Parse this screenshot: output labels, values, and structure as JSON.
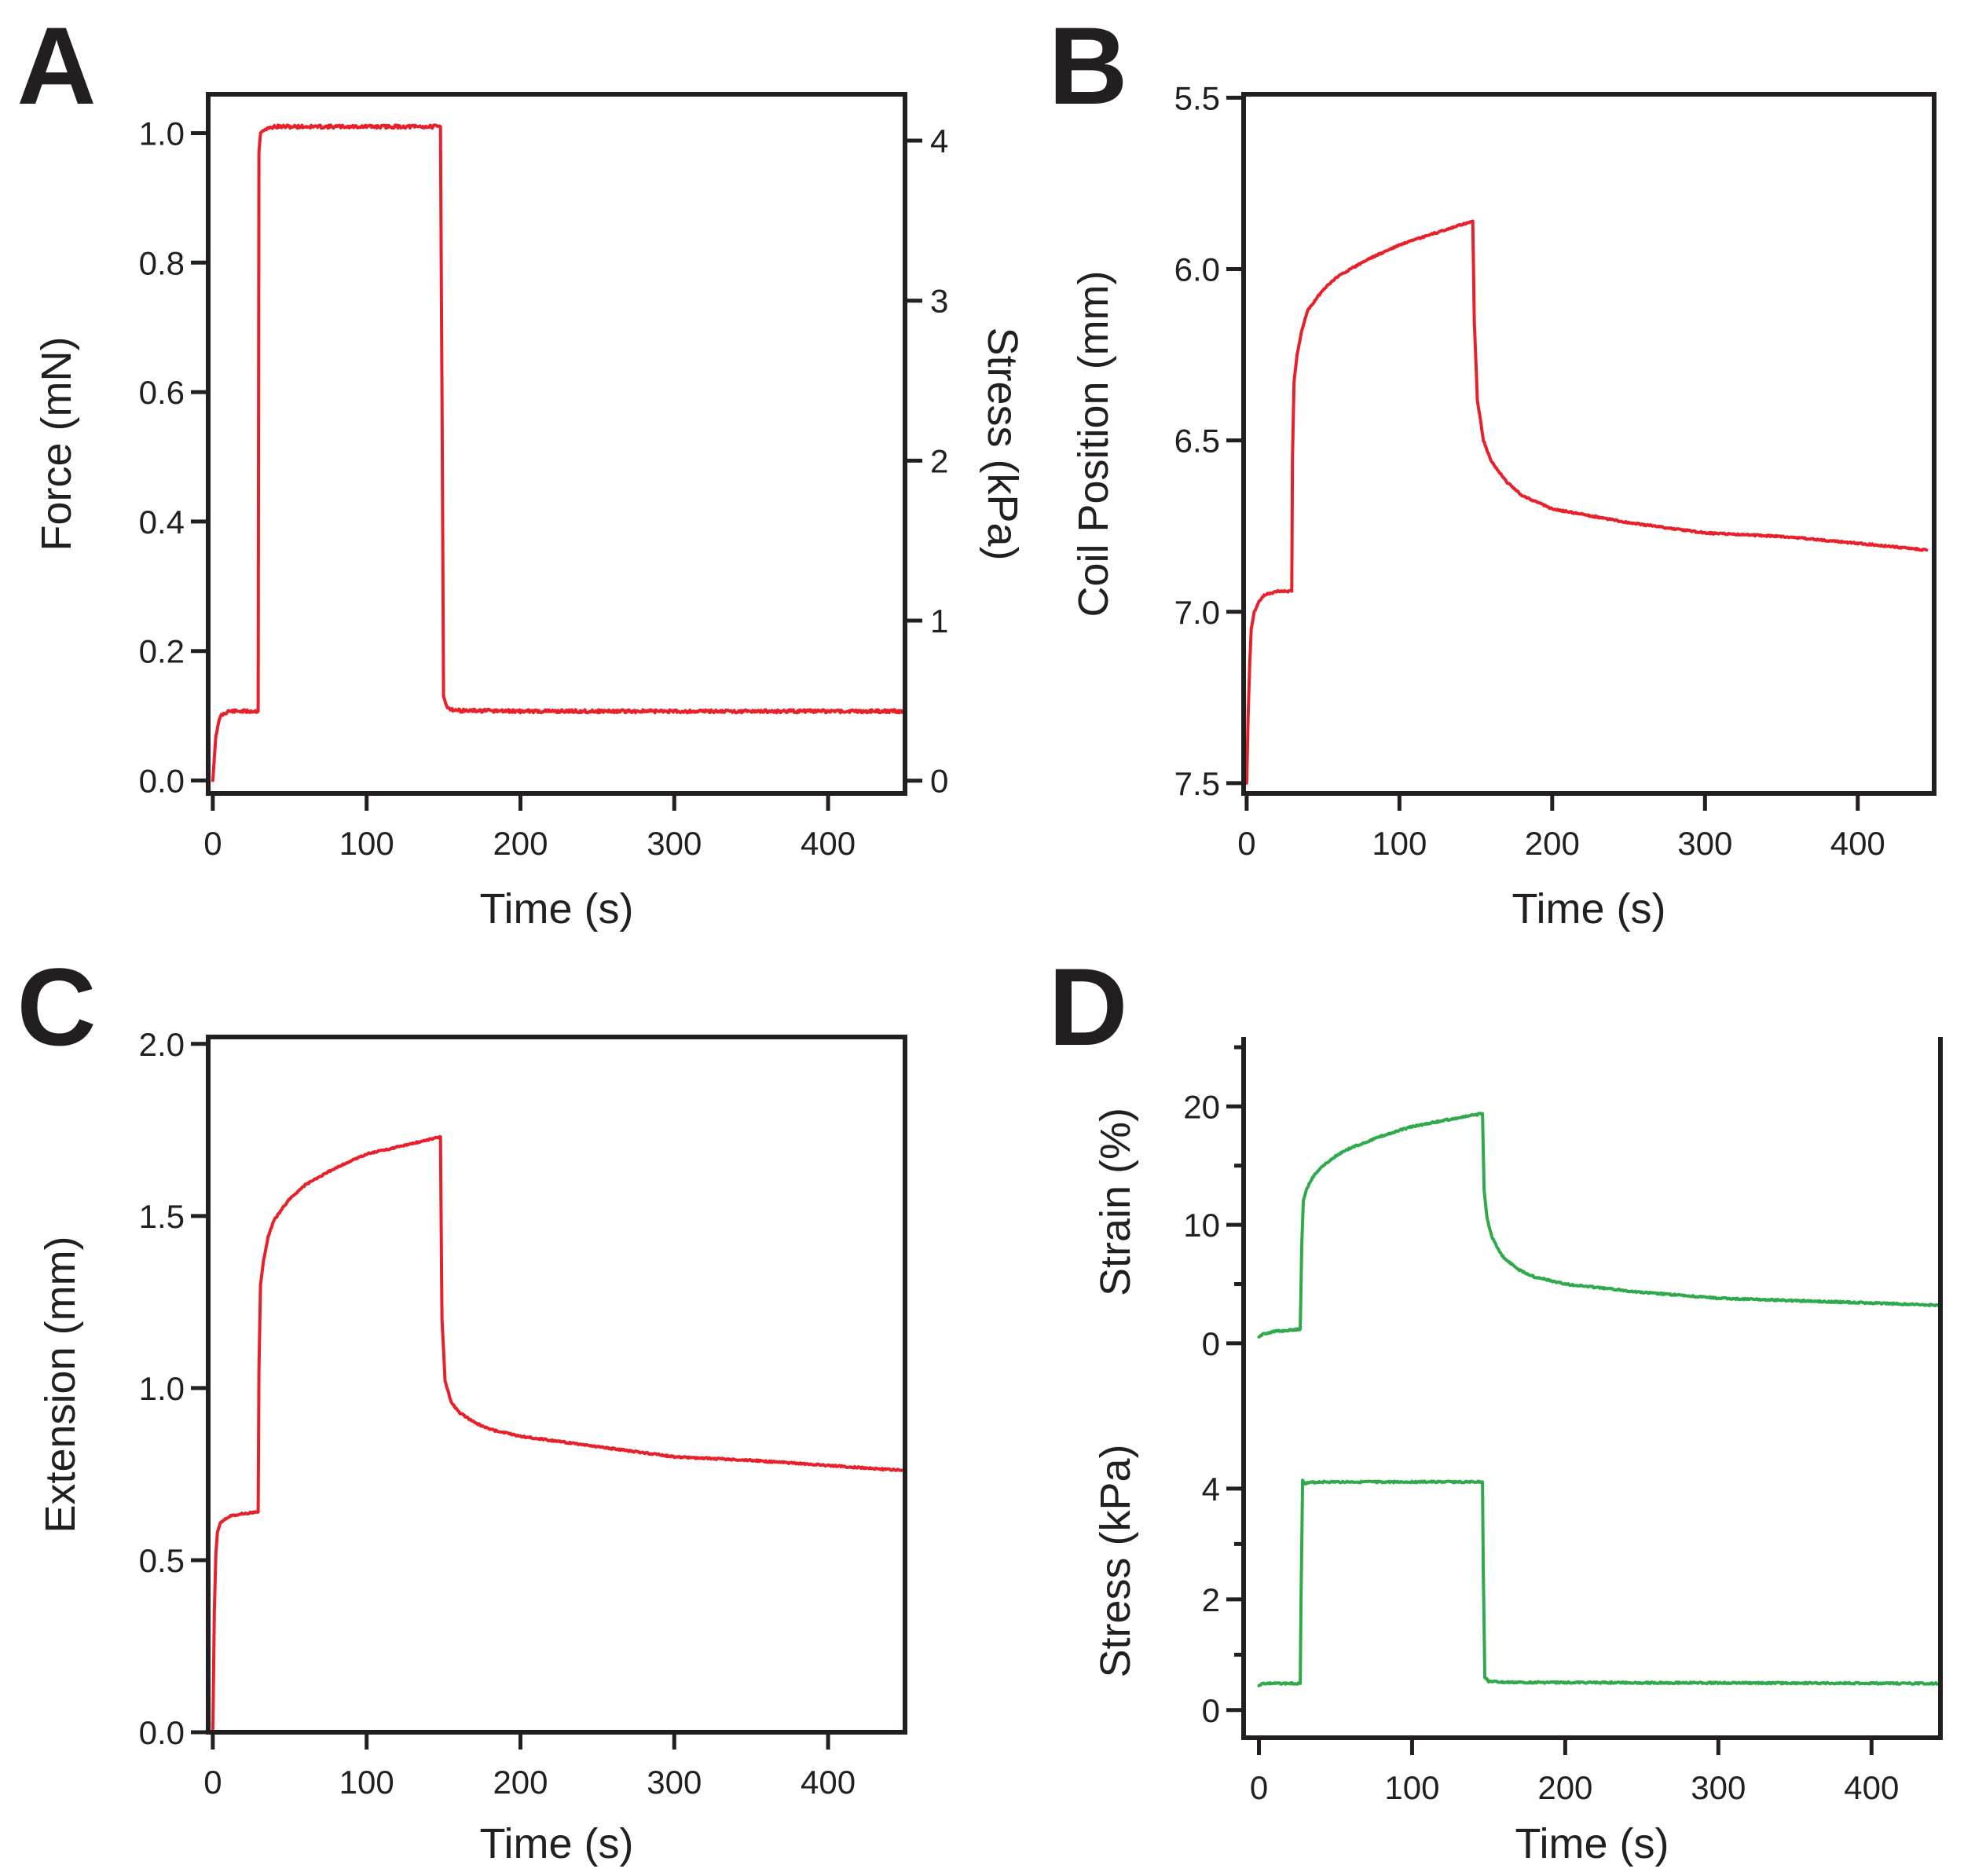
{
  "colors": {
    "red": "#e8202a",
    "green": "#2faa4a",
    "ink": "#231f20"
  },
  "chart_data": [
    {
      "id": "A",
      "panel_label": "A",
      "type": "line",
      "xlabel": "Time (s)",
      "ylabel": "Force (mN)",
      "y2label": "Stress (kPa)",
      "xlim": [
        -3,
        450
      ],
      "ylim": [
        -0.02,
        1.06
      ],
      "y2lim": [
        -0.08,
        4.29
      ],
      "xticks": [
        0,
        100,
        200,
        300,
        400
      ],
      "xtick_labels": [
        "0",
        "100",
        "200",
        "300",
        "400"
      ],
      "yticks": [
        0,
        0.2,
        0.4,
        0.6,
        0.8,
        1.0
      ],
      "ytick_labels": [
        "0.0",
        "0.2",
        "0.4",
        "0.6",
        "0.8",
        "1.0"
      ],
      "y2ticks": [
        0,
        1,
        2,
        3,
        4
      ],
      "y2tick_labels": [
        "0",
        "1",
        "2",
        "3",
        "4"
      ],
      "series": [
        {
          "name": "Force",
          "color": "#e8202a",
          "x": [
            0,
            2,
            5,
            10,
            29.5,
            30,
            31,
            33,
            40,
            148,
            149,
            150,
            152,
            155,
            160,
            200,
            300,
            450
          ],
          "y": [
            0,
            0.07,
            0.1,
            0.107,
            0.107,
            0.97,
            1.0,
            1.005,
            1.01,
            1.01,
            0.6,
            0.13,
            0.115,
            0.11,
            0.108,
            0.107,
            0.107,
            0.107
          ]
        }
      ]
    },
    {
      "id": "B",
      "panel_label": "B",
      "type": "line",
      "xlabel": "Time (s)",
      "ylabel": "Coil Position (mm)",
      "xlim": [
        -2,
        450
      ],
      "ylim": [
        7.53,
        5.49
      ],
      "y_inverted": true,
      "xticks": [
        0,
        100,
        200,
        300,
        400
      ],
      "xtick_labels": [
        "0",
        "100",
        "200",
        "300",
        "400"
      ],
      "yticks": [
        5.5,
        6.0,
        6.5,
        7.0,
        7.5
      ],
      "ytick_labels": [
        "5.5",
        "6.0",
        "6.5",
        "7.0",
        "7.5"
      ],
      "series": [
        {
          "name": "Coil Position",
          "color": "#e8202a",
          "x": [
            0,
            1,
            2,
            3,
            5,
            8,
            12,
            20,
            29.5,
            30,
            31,
            33,
            36,
            40,
            50,
            60,
            80,
            100,
            120,
            148,
            149,
            151,
            155,
            160,
            170,
            180,
            200,
            250,
            300,
            350,
            400,
            445
          ],
          "y": [
            7.5,
            7.3,
            7.15,
            7.05,
            7.0,
            6.97,
            6.95,
            6.94,
            6.94,
            6.55,
            6.33,
            6.25,
            6.18,
            6.12,
            6.06,
            6.02,
            5.97,
            5.93,
            5.9,
            5.86,
            6.15,
            6.38,
            6.5,
            6.56,
            6.62,
            6.66,
            6.7,
            6.74,
            6.77,
            6.78,
            6.8,
            6.82
          ]
        }
      ]
    },
    {
      "id": "C",
      "panel_label": "C",
      "type": "line",
      "xlabel": "Time (s)",
      "ylabel": "Extension (mm)",
      "xlim": [
        -3,
        450
      ],
      "ylim": [
        0,
        2.02
      ],
      "xticks": [
        0,
        100,
        200,
        300,
        400
      ],
      "xtick_labels": [
        "0",
        "100",
        "200",
        "300",
        "400"
      ],
      "yticks": [
        0,
        0.5,
        1.0,
        1.5,
        2.0
      ],
      "ytick_labels": [
        "0.0",
        "0.5",
        "1.0",
        "1.5",
        "2.0"
      ],
      "series": [
        {
          "name": "Extension",
          "color": "#e8202a",
          "x": [
            0,
            1,
            2,
            3,
            5,
            8,
            12,
            20,
            29.5,
            30,
            31,
            33,
            36,
            40,
            50,
            60,
            80,
            100,
            120,
            148,
            149,
            151,
            155,
            160,
            170,
            180,
            200,
            250,
            300,
            350,
            400,
            450
          ],
          "y": [
            0,
            0.35,
            0.52,
            0.58,
            0.61,
            0.62,
            0.63,
            0.635,
            0.64,
            1.05,
            1.3,
            1.37,
            1.44,
            1.49,
            1.55,
            1.59,
            1.64,
            1.68,
            1.7,
            1.73,
            1.2,
            1.02,
            0.96,
            0.93,
            0.9,
            0.88,
            0.86,
            0.83,
            0.8,
            0.79,
            0.775,
            0.76
          ]
        }
      ]
    },
    {
      "id": "D_strain",
      "panel_label": "D",
      "type": "line",
      "ylabel": "Strain (%)",
      "xlim": [
        -10,
        445
      ],
      "ylim": [
        -2,
        26
      ],
      "yticks": [
        0,
        10,
        20
      ],
      "ytick_labels": [
        "0",
        "10",
        "20"
      ],
      "yminor": [
        5,
        15,
        25
      ],
      "series": [
        {
          "name": "Strain",
          "color": "#2faa4a",
          "x": [
            0,
            3,
            10,
            20,
            27,
            28,
            29,
            31,
            35,
            40,
            50,
            60,
            80,
            100,
            120,
            146,
            147,
            149,
            152,
            156,
            160,
            170,
            180,
            200,
            250,
            300,
            350,
            400,
            445
          ],
          "y": [
            0.5,
            0.8,
            1.0,
            1.1,
            1.2,
            8.5,
            12.0,
            13.0,
            14.0,
            14.8,
            15.8,
            16.5,
            17.5,
            18.3,
            18.8,
            19.4,
            13.0,
            10.5,
            9.0,
            8.0,
            7.2,
            6.2,
            5.6,
            5.0,
            4.3,
            3.8,
            3.6,
            3.4,
            3.2
          ]
        }
      ]
    },
    {
      "id": "D_stress",
      "panel_label": "",
      "type": "line",
      "xlabel": "Time (s)",
      "ylabel": "Stress (kPa)",
      "xlim": [
        -10,
        445
      ],
      "ylim": [
        -0.5,
        4.85
      ],
      "xticks": [
        0,
        100,
        200,
        300,
        400
      ],
      "xtick_labels": [
        "0",
        "100",
        "200",
        "300",
        "400"
      ],
      "yticks": [
        0,
        2,
        4
      ],
      "ytick_labels": [
        "0",
        "2",
        "4"
      ],
      "yminor": [
        1,
        3
      ],
      "series": [
        {
          "name": "Stress",
          "color": "#2faa4a",
          "x": [
            0,
            3,
            27,
            27.5,
            28.5,
            30,
            40,
            146,
            146.5,
            147.5,
            150,
            160,
            445
          ],
          "y": [
            0.45,
            0.48,
            0.48,
            2.0,
            4.15,
            4.1,
            4.12,
            4.12,
            2.5,
            0.6,
            0.52,
            0.5,
            0.48
          ]
        }
      ]
    }
  ]
}
